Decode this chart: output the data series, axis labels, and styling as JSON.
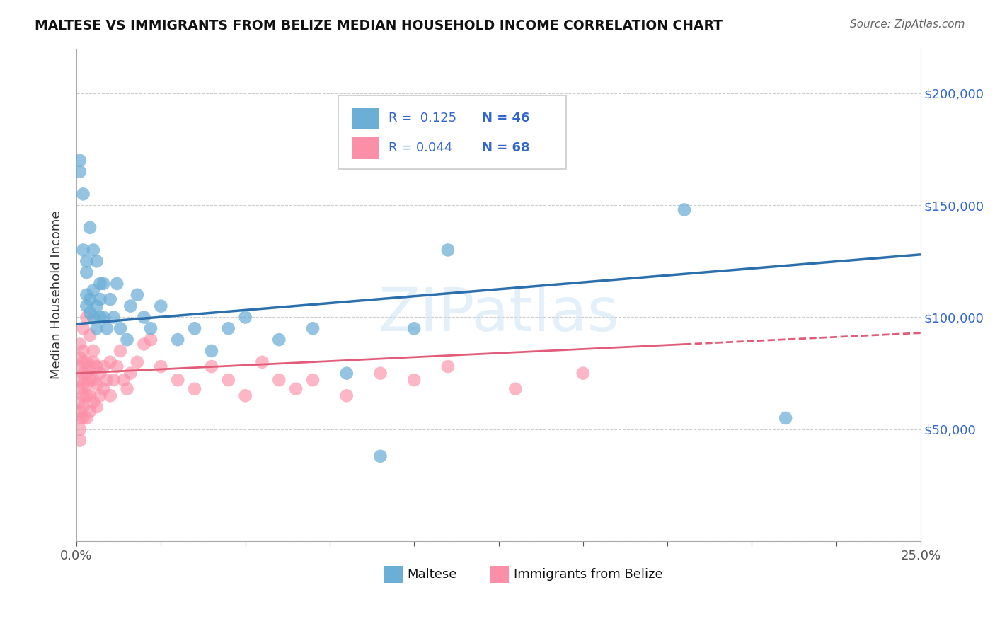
{
  "title": "MALTESE VS IMMIGRANTS FROM BELIZE MEDIAN HOUSEHOLD INCOME CORRELATION CHART",
  "source": "Source: ZipAtlas.com",
  "ylabel": "Median Household Income",
  "xlim": [
    0.0,
    0.25
  ],
  "ylim": [
    0,
    220000
  ],
  "maltese_color": "#6baed6",
  "belize_color": "#fc8fa8",
  "maltese_line_color": "#2c6fad",
  "belize_line_color": "#e05c78",
  "background_color": "#ffffff",
  "maltese_x": [
    0.001,
    0.001,
    0.002,
    0.002,
    0.003,
    0.003,
    0.003,
    0.004,
    0.004,
    0.005,
    0.005,
    0.006,
    0.006,
    0.007,
    0.007,
    0.008,
    0.009,
    0.01,
    0.011,
    0.012,
    0.013,
    0.015,
    0.016,
    0.018,
    0.02,
    0.022,
    0.025,
    0.03,
    0.035,
    0.04,
    0.045,
    0.05,
    0.06,
    0.07,
    0.08,
    0.09,
    0.1,
    0.11,
    0.18,
    0.21,
    0.003,
    0.004,
    0.005,
    0.006,
    0.007,
    0.008
  ],
  "maltese_y": [
    165000,
    170000,
    155000,
    130000,
    125000,
    110000,
    105000,
    108000,
    102000,
    100000,
    112000,
    105000,
    95000,
    115000,
    100000,
    100000,
    95000,
    108000,
    100000,
    115000,
    95000,
    90000,
    105000,
    110000,
    100000,
    95000,
    105000,
    90000,
    95000,
    85000,
    95000,
    100000,
    90000,
    95000,
    75000,
    38000,
    95000,
    130000,
    148000,
    55000,
    120000,
    140000,
    130000,
    125000,
    108000,
    115000
  ],
  "belize_x": [
    0.001,
    0.001,
    0.001,
    0.001,
    0.001,
    0.001,
    0.001,
    0.001,
    0.001,
    0.001,
    0.002,
    0.002,
    0.002,
    0.002,
    0.002,
    0.002,
    0.002,
    0.003,
    0.003,
    0.003,
    0.003,
    0.003,
    0.004,
    0.004,
    0.004,
    0.004,
    0.005,
    0.005,
    0.005,
    0.006,
    0.006,
    0.006,
    0.007,
    0.007,
    0.008,
    0.008,
    0.009,
    0.01,
    0.01,
    0.011,
    0.012,
    0.013,
    0.014,
    0.015,
    0.016,
    0.018,
    0.02,
    0.022,
    0.025,
    0.03,
    0.035,
    0.04,
    0.045,
    0.05,
    0.055,
    0.06,
    0.065,
    0.07,
    0.08,
    0.09,
    0.1,
    0.11,
    0.13,
    0.15,
    0.002,
    0.003,
    0.004,
    0.005
  ],
  "belize_y": [
    88000,
    82000,
    78000,
    72000,
    68000,
    62000,
    58000,
    55000,
    50000,
    45000,
    85000,
    80000,
    75000,
    70000,
    65000,
    60000,
    55000,
    80000,
    75000,
    70000,
    65000,
    55000,
    78000,
    72000,
    65000,
    58000,
    80000,
    72000,
    62000,
    78000,
    70000,
    60000,
    75000,
    65000,
    78000,
    68000,
    72000,
    80000,
    65000,
    72000,
    78000,
    85000,
    72000,
    68000,
    75000,
    80000,
    88000,
    90000,
    78000,
    72000,
    68000,
    78000,
    72000,
    65000,
    80000,
    72000,
    68000,
    72000,
    65000,
    75000,
    72000,
    78000,
    68000,
    75000,
    95000,
    100000,
    92000,
    85000
  ]
}
